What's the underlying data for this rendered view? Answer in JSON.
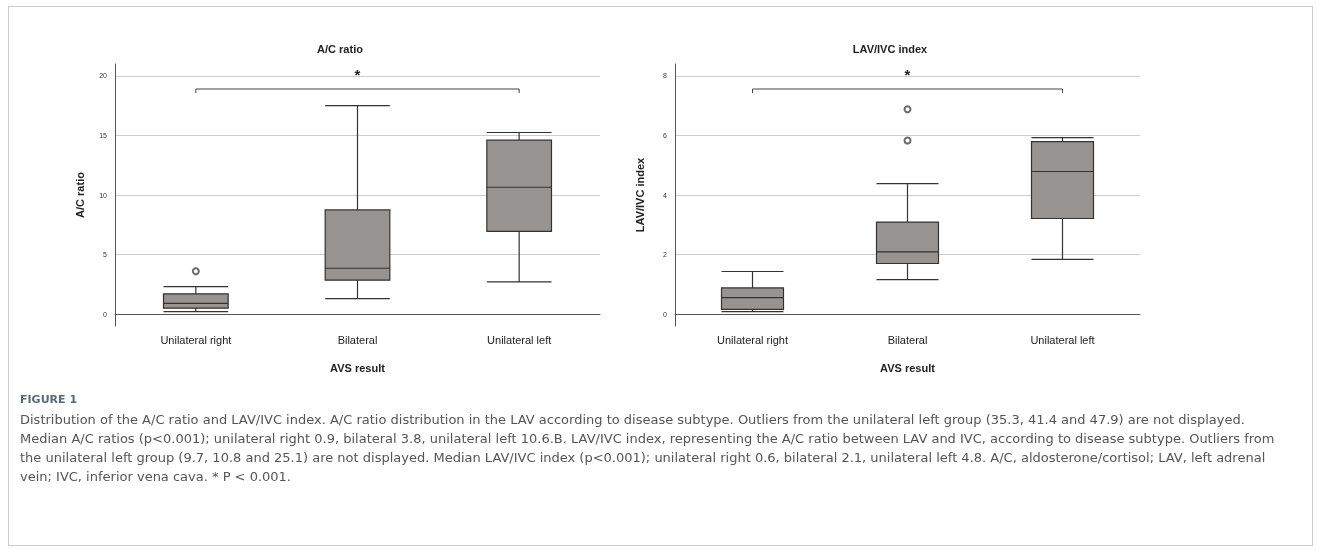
{
  "chart_data": [
    {
      "type": "box",
      "title": "A/C ratio",
      "xlabel": "AVS result",
      "ylabel": "A/C ratio",
      "categories": [
        "Unilateral right",
        "Bilateral",
        "Unilateral left"
      ],
      "color": "#979391",
      "boxes": [
        {
          "low": 0.2,
          "q1": 0.5,
          "median": 0.9,
          "q3": 1.7,
          "high": 2.3,
          "outliers": [
            3.6
          ]
        },
        {
          "low": 1.3,
          "q1": 2.85,
          "median": 3.85,
          "q3": 8.75,
          "high": 17.5
        },
        {
          "low": 2.7,
          "q1": 6.95,
          "median": 10.65,
          "q3": 14.6,
          "high": 15.25
        }
      ],
      "ylim": [
        -1,
        21
      ],
      "yticks": [
        0,
        5,
        10,
        15,
        20
      ],
      "grid": "y",
      "annotations": [
        "*",
        "FIGURE 1",
        "Distribution of the A/C ratio and LAV/IVC index. A/C ratio distribution in the LAV according to disease subtype. Outliers from the unilateral left group (35.3, 41.4 and 47.9) are not displayed. Median A/C ratios (p<0.001); unilateral right 0.9, bilateral 3.8, unilateral left 10.6.B. LAV/IVC index, representing the A/C ratio between LAV and IVC, according to disease subtype. Outliers from the unilateral left group (9.7, 10.8 and 25.1) are not displayed. Median LAV/IVC index (p<0.001); unilateral right 0.6, bilateral 2.1, unilateral left 4.8. A/C, aldosterone/cortisol; LAV, left adrenal vein; IVC, inferior vena cava. * P < 0.001."
      ]
    },
    {
      "type": "box",
      "title": "LAV/IVC index",
      "xlabel": "AVS result",
      "ylabel": "LAV/IVC index",
      "categories": [
        "Unilateral right",
        "Bilateral",
        "Unilateral left"
      ],
      "color": "#979391",
      "boxes": [
        {
          "low": 0.08,
          "q1": 0.16,
          "median": 0.55,
          "q3": 0.88,
          "high": 1.43
        },
        {
          "low": 1.16,
          "q1": 1.7,
          "median": 2.09,
          "q3": 3.09,
          "high": 4.38,
          "outliers": [
            5.83,
            6.88
          ]
        },
        {
          "low": 1.84,
          "q1": 3.21,
          "median": 4.79,
          "q3": 5.79,
          "high": 5.93
        }
      ],
      "ylim": [
        -0.4,
        8.4
      ],
      "yticks": [
        0,
        2,
        4,
        6,
        8
      ],
      "grid": "y",
      "annotations": [
        "*"
      ]
    }
  ]
}
